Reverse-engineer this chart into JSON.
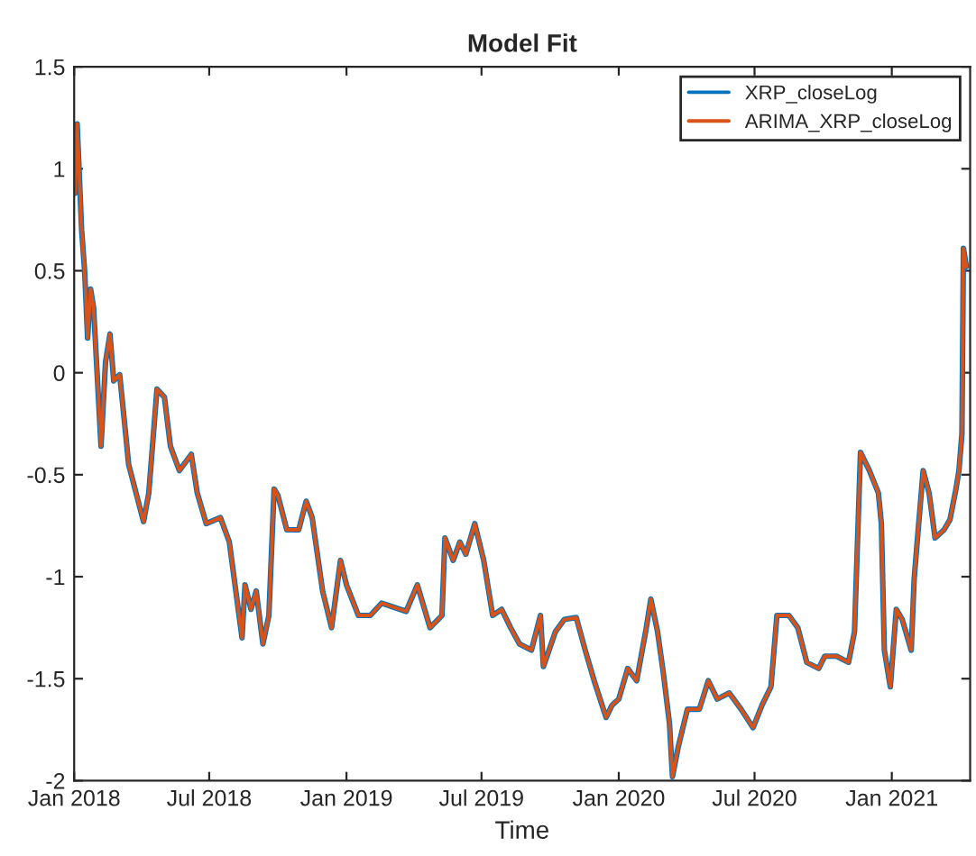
{
  "chart_data": {
    "type": "line",
    "title": "Model Fit",
    "xlabel": "Time",
    "x": [
      "2018-01-02",
      "2018-01-05",
      "2018-01-11",
      "2018-01-15",
      "2018-01-19",
      "2018-01-23",
      "2018-01-27",
      "2018-02-06",
      "2018-02-12",
      "2018-02-18",
      "2018-02-23",
      "2018-03-03",
      "2018-03-11",
      "2018-03-15",
      "2018-04-04",
      "2018-04-11",
      "2018-04-22",
      "2018-05-02",
      "2018-05-10",
      "2018-05-22",
      "2018-06-07",
      "2018-06-15",
      "2018-06-27",
      "2018-07-16",
      "2018-07-28",
      "2018-08-14",
      "2018-08-18",
      "2018-08-26",
      "2018-09-02",
      "2018-09-11",
      "2018-09-19",
      "2018-09-26",
      "2018-10-01",
      "2018-10-13",
      "2018-10-29",
      "2018-11-08",
      "2018-11-16",
      "2018-11-30",
      "2018-12-12",
      "2018-12-24",
      "2019-01-01",
      "2019-01-17",
      "2019-02-02",
      "2019-02-17",
      "2019-03-22",
      "2019-04-06",
      "2019-04-23",
      "2019-05-09",
      "2019-05-13",
      "2019-05-24",
      "2019-06-02",
      "2019-06-10",
      "2019-06-22",
      "2019-07-04",
      "2019-07-16",
      "2019-07-28",
      "2019-08-09",
      "2019-08-21",
      "2019-09-06",
      "2019-09-18",
      "2019-09-22",
      "2019-10-08",
      "2019-10-20",
      "2019-11-05",
      "2019-11-17",
      "2019-11-29",
      "2019-12-15",
      "2019-12-23",
      "2020-01-01",
      "2020-01-13",
      "2020-01-25",
      "2020-02-06",
      "2020-02-13",
      "2020-02-22",
      "2020-03-01",
      "2020-03-09",
      "2020-03-13",
      "2020-03-21",
      "2020-04-02",
      "2020-04-18",
      "2020-04-30",
      "2020-05-12",
      "2020-05-28",
      "2020-06-13",
      "2020-06-29",
      "2020-07-11",
      "2020-07-23",
      "2020-07-31",
      "2020-08-16",
      "2020-08-28",
      "2020-09-09",
      "2020-09-25",
      "2020-10-03",
      "2020-10-19",
      "2020-11-04",
      "2020-11-12",
      "2020-11-20",
      "2020-12-02",
      "2020-12-14",
      "2020-12-18",
      "2020-12-22",
      "2020-12-30",
      "2021-01-07",
      "2021-01-15",
      "2021-01-27",
      "2021-01-31",
      "2021-02-04",
      "2021-02-12",
      "2021-02-20",
      "2021-02-28",
      "2021-03-12",
      "2021-03-20",
      "2021-03-28",
      "2021-04-01",
      "2021-04-05",
      "2021-04-07",
      "2021-04-11"
    ],
    "series": [
      {
        "name": "XRP_closeLog",
        "color": "#0072bd",
        "values": [
          0.88,
          1.22,
          0.7,
          0.5,
          0.17,
          0.41,
          0.32,
          -0.36,
          0.05,
          0.19,
          -0.04,
          -0.01,
          -0.3,
          -0.45,
          -0.73,
          -0.59,
          -0.08,
          -0.12,
          -0.36,
          -0.48,
          -0.4,
          -0.59,
          -0.74,
          -0.71,
          -0.83,
          -1.3,
          -1.04,
          -1.16,
          -1.07,
          -1.33,
          -1.19,
          -0.57,
          -0.6,
          -0.77,
          -0.77,
          -0.63,
          -0.71,
          -1.07,
          -1.25,
          -0.92,
          -1.04,
          -1.19,
          -1.19,
          -1.13,
          -1.17,
          -1.04,
          -1.25,
          -1.19,
          -0.81,
          -0.92,
          -0.83,
          -0.89,
          -0.74,
          -0.92,
          -1.19,
          -1.16,
          -1.25,
          -1.33,
          -1.36,
          -1.19,
          -1.44,
          -1.27,
          -1.21,
          -1.2,
          -1.36,
          -1.51,
          -1.69,
          -1.63,
          -1.6,
          -1.45,
          -1.51,
          -1.27,
          -1.11,
          -1.27,
          -1.48,
          -1.72,
          -1.98,
          -1.83,
          -1.65,
          -1.65,
          -1.51,
          -1.6,
          -1.57,
          -1.65,
          -1.74,
          -1.63,
          -1.54,
          -1.19,
          -1.19,
          -1.25,
          -1.42,
          -1.45,
          -1.39,
          -1.39,
          -1.42,
          -1.27,
          -0.39,
          -0.48,
          -0.59,
          -0.74,
          -1.36,
          -1.54,
          -1.16,
          -1.21,
          -1.36,
          -1.01,
          -0.83,
          -0.48,
          -0.59,
          -0.81,
          -0.77,
          -0.72,
          -0.57,
          -0.48,
          -0.3,
          0.61,
          0.52
        ]
      },
      {
        "name": "ARIMA_XRP_closeLog",
        "color": "#d95319",
        "values": [
          0.88,
          1.22,
          0.7,
          0.5,
          0.17,
          0.41,
          0.32,
          -0.36,
          0.05,
          0.19,
          -0.04,
          -0.01,
          -0.3,
          -0.45,
          -0.73,
          -0.59,
          -0.08,
          -0.12,
          -0.36,
          -0.48,
          -0.4,
          -0.59,
          -0.74,
          -0.71,
          -0.83,
          -1.3,
          -1.04,
          -1.16,
          -1.07,
          -1.33,
          -1.19,
          -0.57,
          -0.6,
          -0.77,
          -0.77,
          -0.63,
          -0.71,
          -1.07,
          -1.25,
          -0.92,
          -1.04,
          -1.19,
          -1.19,
          -1.13,
          -1.17,
          -1.04,
          -1.25,
          -1.19,
          -0.81,
          -0.92,
          -0.83,
          -0.89,
          -0.74,
          -0.92,
          -1.19,
          -1.16,
          -1.25,
          -1.33,
          -1.36,
          -1.19,
          -1.44,
          -1.27,
          -1.21,
          -1.2,
          -1.36,
          -1.51,
          -1.69,
          -1.63,
          -1.6,
          -1.45,
          -1.51,
          -1.27,
          -1.11,
          -1.27,
          -1.48,
          -1.72,
          -1.98,
          -1.83,
          -1.65,
          -1.65,
          -1.51,
          -1.6,
          -1.57,
          -1.65,
          -1.74,
          -1.63,
          -1.54,
          -1.19,
          -1.19,
          -1.25,
          -1.42,
          -1.45,
          -1.39,
          -1.39,
          -1.42,
          -1.27,
          -0.39,
          -0.48,
          -0.59,
          -0.74,
          -1.36,
          -1.54,
          -1.16,
          -1.21,
          -1.36,
          -1.01,
          -0.83,
          -0.48,
          -0.59,
          -0.81,
          -0.77,
          -0.72,
          -0.57,
          -0.48,
          -0.3,
          0.61,
          0.52
        ]
      }
    ],
    "xlim": [
      "2018-01-01",
      "2021-04-16"
    ],
    "xticks": [
      {
        "value": "2018-01-01",
        "label": "Jan 2018"
      },
      {
        "value": "2018-07-01",
        "label": "Jul 2018"
      },
      {
        "value": "2019-01-01",
        "label": "Jan 2019"
      },
      {
        "value": "2019-07-01",
        "label": "Jul 2019"
      },
      {
        "value": "2020-01-01",
        "label": "Jan 2020"
      },
      {
        "value": "2020-07-01",
        "label": "Jul 2020"
      },
      {
        "value": "2021-01-01",
        "label": "Jan 2021"
      }
    ],
    "ylim": [
      -2,
      1.5
    ],
    "yticks": [
      -2,
      -1.5,
      -1,
      -0.5,
      0,
      0.5,
      1,
      1.5
    ],
    "legend": "top right",
    "grid": false,
    "line_style": "solid",
    "marker": "none"
  }
}
